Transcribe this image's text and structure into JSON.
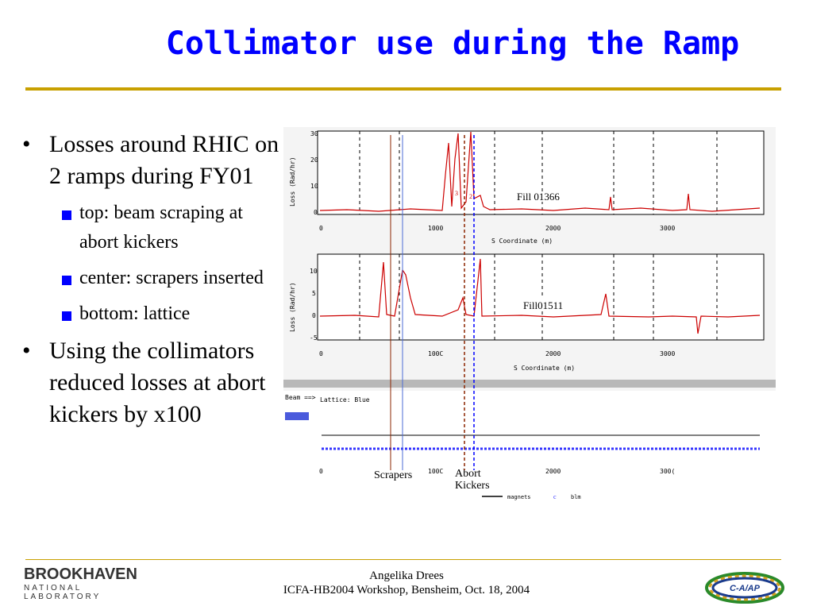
{
  "slide": {
    "title": "Collimator use during the Ramp",
    "bullets": [
      {
        "text": "Losses around RHIC on 2 ramps during FY01",
        "sub": [
          "top: beam scraping at abort kickers",
          "center: scrapers inserted",
          "bottom: lattice"
        ]
      },
      {
        "text": "Using the collimators reduced losses at abort kickers by x100"
      }
    ]
  },
  "figure": {
    "top_plot": {
      "ylabel": "Loss (Rad/hr)",
      "yticks": [
        "30",
        "20",
        "10",
        "0"
      ],
      "xticks": [
        "0",
        "1000",
        "2000",
        "3000"
      ],
      "xlabel": "S Coordinate (m)",
      "label": "Fill 01366",
      "peak_markers": [
        "3",
        "2"
      ]
    },
    "mid_plot": {
      "ylabel": "Loss (Rad/hr)",
      "yticks": [
        "10",
        "5",
        "0",
        "-5"
      ],
      "xticks": [
        "0",
        "100C",
        "2000",
        "3000"
      ],
      "xlabel": "S Coordinate (m)",
      "label": "Fill01511"
    },
    "lattice_panel": {
      "beam_label": "Beam ==>",
      "lattice_label": "Lattice: Blue",
      "xticks": [
        "0",
        "100C",
        "2000",
        "300("
      ],
      "scrapers_label": "Scrapers",
      "abort_label_1": "Abort",
      "abort_label_2": "Kickers",
      "legend_magnets": "magnets",
      "legend_blm_marker": "c",
      "legend_blm": "blm"
    }
  },
  "footer": {
    "presenter": "Angelika Drees",
    "event": "ICFA-HB2004 Workshop, Bensheim, Oct. 18, 2004",
    "logo_left_name": "BROOKHAVEN",
    "logo_left_sub": "NATIONAL LABORATORY",
    "logo_right": "C-A/AP"
  },
  "colors": {
    "title": "#0000ff",
    "rule": "#c8a000",
    "data": "#cc0000",
    "scraper_line": "#8b2500",
    "blue_line": "#4b6bd6",
    "abort_line": "#0000ff",
    "lattice_strip": "#3333ff"
  },
  "icons": {
    "sub_bullet": "blue-square-icon",
    "logo_bnl": "brookhaven-logo-icon",
    "logo_cap": "cap-ring-logo-icon"
  }
}
